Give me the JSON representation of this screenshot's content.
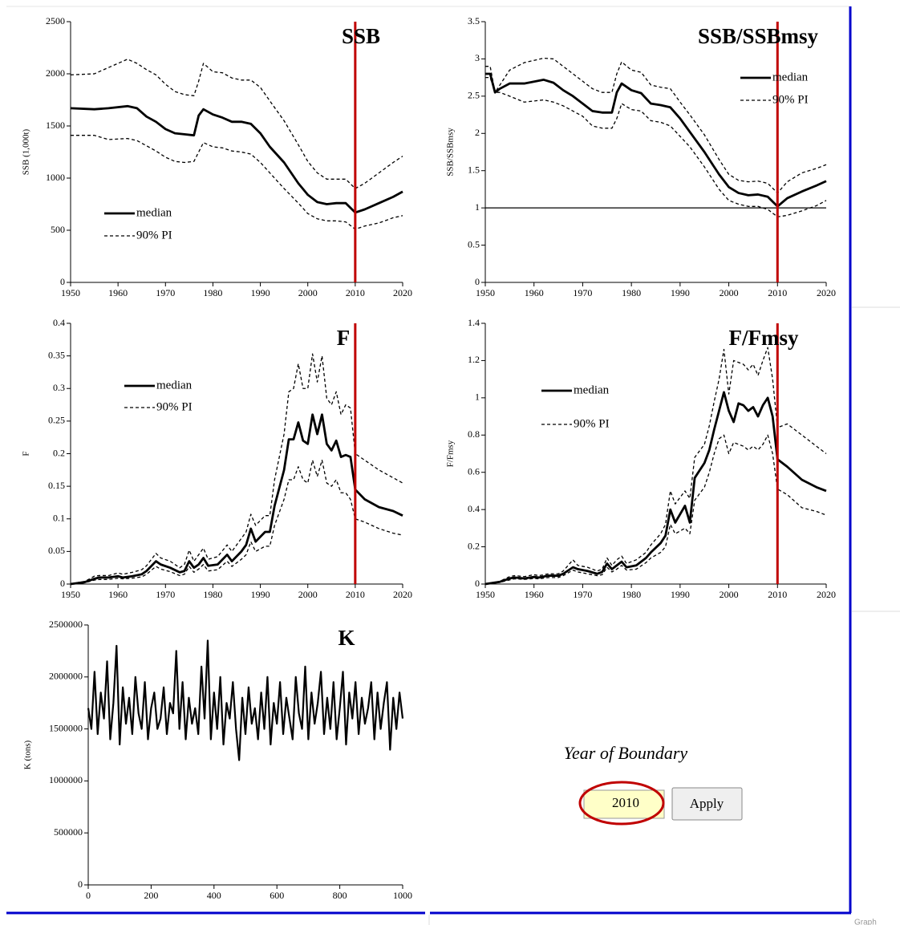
{
  "chart_data": [
    {
      "type": "line",
      "title": "SSB",
      "y_label": "SSB (1,000t)",
      "boundary_line": true,
      "x": [
        1950,
        1955,
        1958,
        1962,
        1964,
        1966,
        1968,
        1970,
        1972,
        1974,
        1976,
        1977,
        1978,
        1980,
        1982,
        1984,
        1986,
        1988,
        1990,
        1992,
        1995,
        1998,
        2000,
        2002,
        2004,
        2006,
        2008,
        2010,
        2012,
        2015,
        2018,
        2020
      ],
      "series": [
        {
          "name": "median",
          "color": "#000000",
          "linestyle": "solid",
          "values": [
            1670,
            1660,
            1670,
            1690,
            1670,
            1590,
            1540,
            1470,
            1430,
            1420,
            1410,
            1600,
            1660,
            1610,
            1580,
            1540,
            1540,
            1520,
            1430,
            1300,
            1150,
            950,
            840,
            770,
            750,
            760,
            760,
            670,
            700,
            760,
            820,
            870
          ]
        },
        {
          "name": "90% PI",
          "color": "#000000",
          "linestyle": "dashed",
          "values": [
            1990,
            2000,
            2060,
            2140,
            2100,
            2040,
            1990,
            1900,
            1830,
            1800,
            1790,
            1930,
            2100,
            2020,
            2010,
            1960,
            1940,
            1940,
            1870,
            1740,
            1550,
            1320,
            1160,
            1050,
            990,
            990,
            990,
            900,
            950,
            1050,
            1150,
            1210
          ],
          "lower": [
            1410,
            1410,
            1370,
            1380,
            1360,
            1310,
            1260,
            1200,
            1160,
            1150,
            1160,
            1250,
            1340,
            1300,
            1290,
            1260,
            1250,
            1230,
            1150,
            1050,
            900,
            760,
            660,
            610,
            590,
            590,
            580,
            510,
            540,
            570,
            620,
            640
          ]
        }
      ],
      "xlim": [
        1950,
        2020
      ],
      "xticks": [
        1950,
        1960,
        1970,
        1980,
        1990,
        2000,
        2010,
        2020
      ],
      "ylim": [
        0,
        2500
      ],
      "yticks": [
        0,
        500,
        1000,
        1500,
        2000,
        2500
      ]
    },
    {
      "type": "line",
      "title": "SSB/SSBmsy",
      "y_label": "SSB/SSBmsy",
      "boundary_line": true,
      "hline": 1,
      "x": [
        1950,
        1951,
        1952,
        1953,
        1955,
        1958,
        1962,
        1964,
        1966,
        1968,
        1970,
        1972,
        1974,
        1976,
        1977,
        1978,
        1980,
        1982,
        1984,
        1986,
        1988,
        1990,
        1992,
        1995,
        1998,
        2000,
        2002,
        2004,
        2006,
        2008,
        2010,
        2012,
        2015,
        2018,
        2020
      ],
      "series": [
        {
          "name": "median",
          "color": "#000000",
          "linestyle": "solid",
          "values": [
            2.8,
            2.8,
            2.55,
            2.6,
            2.67,
            2.67,
            2.72,
            2.68,
            2.58,
            2.5,
            2.4,
            2.3,
            2.28,
            2.28,
            2.55,
            2.67,
            2.58,
            2.54,
            2.4,
            2.38,
            2.35,
            2.2,
            2.02,
            1.75,
            1.45,
            1.28,
            1.2,
            1.17,
            1.18,
            1.15,
            1.02,
            1.13,
            1.22,
            1.3,
            1.36
          ]
        },
        {
          "name": "90% PI",
          "color": "#000000",
          "linestyle": "dashed",
          "values": [
            2.9,
            2.9,
            2.55,
            2.65,
            2.85,
            2.95,
            3.01,
            3.0,
            2.9,
            2.8,
            2.7,
            2.6,
            2.55,
            2.55,
            2.8,
            2.96,
            2.85,
            2.82,
            2.65,
            2.62,
            2.6,
            2.42,
            2.25,
            1.98,
            1.65,
            1.45,
            1.37,
            1.35,
            1.36,
            1.33,
            1.2,
            1.35,
            1.47,
            1.53,
            1.58
          ],
          "lower": [
            2.75,
            2.75,
            2.55,
            2.55,
            2.5,
            2.42,
            2.45,
            2.42,
            2.37,
            2.3,
            2.23,
            2.1,
            2.07,
            2.07,
            2.2,
            2.4,
            2.32,
            2.3,
            2.17,
            2.15,
            2.1,
            1.96,
            1.82,
            1.55,
            1.25,
            1.1,
            1.05,
            1.02,
            1.02,
            0.98,
            0.88,
            0.9,
            0.96,
            1.03,
            1.1
          ]
        }
      ],
      "xlim": [
        1950,
        2020
      ],
      "xticks": [
        1950,
        1960,
        1970,
        1980,
        1990,
        2000,
        2010,
        2020
      ],
      "ylim": [
        0,
        3.5
      ],
      "yticks": [
        0,
        0.5,
        1,
        1.5,
        2,
        2.5,
        3,
        3.5
      ]
    },
    {
      "type": "line",
      "title": "F",
      "y_label": "F",
      "boundary_line": true,
      "x": [
        1950,
        1952,
        1953,
        1955,
        1956,
        1958,
        1960,
        1961,
        1963,
        1965,
        1966,
        1968,
        1969,
        1971,
        1973,
        1974,
        1975,
        1976,
        1977,
        1978,
        1979,
        1981,
        1983,
        1984,
        1986,
        1987,
        1988,
        1989,
        1991,
        1992,
        1993,
        1995,
        1996,
        1997,
        1998,
        1999,
        2000,
        2001,
        2002,
        2003,
        2004,
        2005,
        2006,
        2007,
        2008,
        2009,
        2010,
        2012,
        2015,
        2018,
        2020
      ],
      "series": [
        {
          "name": "median",
          "color": "#000000",
          "linestyle": "solid",
          "values": [
            0,
            0.002,
            0.003,
            0.008,
            0.01,
            0.01,
            0.012,
            0.01,
            0.012,
            0.015,
            0.02,
            0.035,
            0.03,
            0.025,
            0.018,
            0.02,
            0.035,
            0.025,
            0.03,
            0.04,
            0.028,
            0.03,
            0.045,
            0.035,
            0.05,
            0.06,
            0.085,
            0.065,
            0.08,
            0.08,
            0.12,
            0.175,
            0.222,
            0.222,
            0.248,
            0.22,
            0.215,
            0.26,
            0.23,
            0.26,
            0.215,
            0.205,
            0.22,
            0.195,
            0.198,
            0.195,
            0.145,
            0.13,
            0.118,
            0.112,
            0.105
          ]
        },
        {
          "name": "90% PI",
          "color": "#000000",
          "linestyle": "dashed",
          "values": [
            0,
            0.003,
            0.004,
            0.012,
            0.013,
            0.013,
            0.017,
            0.015,
            0.018,
            0.022,
            0.028,
            0.047,
            0.04,
            0.035,
            0.025,
            0.03,
            0.052,
            0.035,
            0.045,
            0.055,
            0.038,
            0.042,
            0.06,
            0.05,
            0.07,
            0.08,
            0.107,
            0.09,
            0.105,
            0.105,
            0.16,
            0.23,
            0.295,
            0.3,
            0.338,
            0.3,
            0.3,
            0.353,
            0.31,
            0.35,
            0.285,
            0.275,
            0.295,
            0.26,
            0.275,
            0.27,
            0.2,
            0.19,
            0.175,
            0.163,
            0.155
          ],
          "lower": [
            0,
            0.001,
            0.002,
            0.006,
            0.007,
            0.007,
            0.009,
            0.008,
            0.009,
            0.011,
            0.015,
            0.027,
            0.023,
            0.019,
            0.013,
            0.015,
            0.027,
            0.018,
            0.023,
            0.03,
            0.02,
            0.022,
            0.035,
            0.027,
            0.038,
            0.045,
            0.065,
            0.05,
            0.058,
            0.058,
            0.09,
            0.13,
            0.16,
            0.16,
            0.18,
            0.16,
            0.155,
            0.19,
            0.165,
            0.19,
            0.155,
            0.15,
            0.16,
            0.14,
            0.14,
            0.13,
            0.1,
            0.095,
            0.085,
            0.078,
            0.075
          ]
        }
      ],
      "xlim": [
        1950,
        2020
      ],
      "xticks": [
        1950,
        1960,
        1970,
        1980,
        1990,
        2000,
        2010,
        2020
      ],
      "ylim": [
        0,
        0.4
      ],
      "yticks": [
        0,
        0.05,
        0.1,
        0.15,
        0.2,
        0.25,
        0.3,
        0.35,
        0.4
      ]
    },
    {
      "type": "line",
      "title": "F/Fmsy",
      "y_label": "F/Fmsy",
      "boundary_line": true,
      "x": [
        1950,
        1952,
        1953,
        1955,
        1956,
        1958,
        1960,
        1961,
        1963,
        1965,
        1966,
        1968,
        1969,
        1971,
        1973,
        1974,
        1975,
        1976,
        1977,
        1978,
        1979,
        1981,
        1983,
        1984,
        1986,
        1987,
        1988,
        1989,
        1991,
        1992,
        1993,
        1995,
        1996,
        1997,
        1998,
        1999,
        2000,
        2001,
        2002,
        2003,
        2004,
        2005,
        2006,
        2007,
        2008,
        2009,
        2010,
        2012,
        2015,
        2018,
        2020
      ],
      "series": [
        {
          "name": "median",
          "color": "#000000",
          "linestyle": "solid",
          "values": [
            0,
            0.008,
            0.012,
            0.03,
            0.035,
            0.03,
            0.038,
            0.035,
            0.045,
            0.045,
            0.055,
            0.09,
            0.08,
            0.07,
            0.055,
            0.065,
            0.11,
            0.08,
            0.1,
            0.12,
            0.09,
            0.1,
            0.14,
            0.17,
            0.22,
            0.26,
            0.4,
            0.33,
            0.42,
            0.33,
            0.57,
            0.65,
            0.72,
            0.83,
            0.93,
            1.03,
            0.93,
            0.87,
            0.97,
            0.96,
            0.93,
            0.95,
            0.9,
            0.96,
            1.0,
            0.9,
            0.67,
            0.63,
            0.56,
            0.52,
            0.5
          ]
        },
        {
          "name": "90% PI",
          "color": "#000000",
          "linestyle": "dashed",
          "values": [
            0,
            0.01,
            0.015,
            0.04,
            0.045,
            0.04,
            0.05,
            0.045,
            0.055,
            0.055,
            0.07,
            0.13,
            0.1,
            0.09,
            0.07,
            0.08,
            0.14,
            0.1,
            0.13,
            0.15,
            0.11,
            0.13,
            0.17,
            0.21,
            0.27,
            0.32,
            0.5,
            0.43,
            0.5,
            0.46,
            0.68,
            0.75,
            0.85,
            0.98,
            1.1,
            1.26,
            1.02,
            1.2,
            1.19,
            1.18,
            1.15,
            1.18,
            1.12,
            1.2,
            1.27,
            1.1,
            0.84,
            0.86,
            0.8,
            0.74,
            0.7
          ],
          "lower": [
            0,
            0.006,
            0.009,
            0.022,
            0.028,
            0.025,
            0.03,
            0.028,
            0.035,
            0.035,
            0.045,
            0.075,
            0.065,
            0.055,
            0.045,
            0.05,
            0.09,
            0.065,
            0.08,
            0.1,
            0.075,
            0.08,
            0.115,
            0.14,
            0.17,
            0.2,
            0.32,
            0.27,
            0.3,
            0.27,
            0.45,
            0.52,
            0.6,
            0.7,
            0.78,
            0.8,
            0.7,
            0.76,
            0.75,
            0.74,
            0.72,
            0.74,
            0.72,
            0.75,
            0.8,
            0.7,
            0.51,
            0.48,
            0.41,
            0.39,
            0.37
          ]
        }
      ],
      "xlim": [
        1950,
        2020
      ],
      "xticks": [
        1950,
        1960,
        1970,
        1980,
        1990,
        2000,
        2010,
        2020
      ],
      "ylim": [
        0,
        1.4
      ],
      "yticks": [
        0,
        0.2,
        0.4,
        0.6,
        0.8,
        1,
        1.2,
        1.4
      ]
    },
    {
      "type": "line",
      "title": "K",
      "y_label": "K (tons)",
      "boundary_line": false,
      "x": [
        0,
        10,
        20,
        30,
        40,
        50,
        60,
        70,
        80,
        90,
        100,
        110,
        120,
        130,
        140,
        150,
        160,
        170,
        180,
        190,
        200,
        210,
        220,
        230,
        240,
        250,
        260,
        270,
        280,
        290,
        300,
        310,
        320,
        330,
        340,
        350,
        360,
        370,
        380,
        390,
        400,
        410,
        420,
        430,
        440,
        450,
        460,
        470,
        480,
        490,
        500,
        510,
        520,
        530,
        540,
        550,
        560,
        570,
        580,
        590,
        600,
        610,
        620,
        630,
        640,
        650,
        660,
        670,
        680,
        690,
        700,
        710,
        720,
        730,
        740,
        750,
        760,
        770,
        780,
        790,
        800,
        810,
        820,
        830,
        840,
        850,
        860,
        870,
        880,
        890,
        900,
        910,
        920,
        930,
        940,
        950,
        960,
        970,
        980,
        990,
        1000
      ],
      "series": [
        {
          "color": "#000000",
          "linestyle": "solid",
          "values": [
            1700000,
            1500000,
            2050000,
            1450000,
            1850000,
            1600000,
            2150000,
            1400000,
            1750000,
            2300000,
            1350000,
            1900000,
            1550000,
            1800000,
            1450000,
            2000000,
            1650000,
            1500000,
            1950000,
            1400000,
            1700000,
            1850000,
            1500000,
            1600000,
            1900000,
            1450000,
            1750000,
            1650000,
            2250000,
            1500000,
            1950000,
            1400000,
            1800000,
            1550000,
            1700000,
            1450000,
            2100000,
            1600000,
            2350000,
            1400000,
            1850000,
            1500000,
            2000000,
            1350000,
            1750000,
            1600000,
            1950000,
            1500000,
            1200000,
            1800000,
            1450000,
            1900000,
            1550000,
            1700000,
            1400000,
            1850000,
            1500000,
            2000000,
            1350000,
            1750000,
            1550000,
            1950000,
            1450000,
            1800000,
            1600000,
            1400000,
            2000000,
            1650000,
            1500000,
            2100000,
            1400000,
            1850000,
            1550000,
            1750000,
            2050000,
            1450000,
            1800000,
            1500000,
            1950000,
            1400000,
            1700000,
            2050000,
            1350000,
            1850000,
            1600000,
            1950000,
            1450000,
            1800000,
            1550000,
            1700000,
            1950000,
            1400000,
            1850000,
            1500000,
            1750000,
            1950000,
            1300000,
            1800000,
            1500000,
            1850000,
            1600000
          ]
        }
      ],
      "xlim": [
        0,
        1000
      ],
      "xticks": [
        0,
        200,
        400,
        600,
        800,
        1000
      ],
      "ylim": [
        0,
        2500000
      ],
      "yticks": [
        0,
        500000,
        1000000,
        1500000,
        2000000,
        2500000
      ]
    }
  ],
  "controls": {
    "label": "Year of Boundary",
    "year": 2010,
    "button": "Apply"
  },
  "footer": "Graph"
}
